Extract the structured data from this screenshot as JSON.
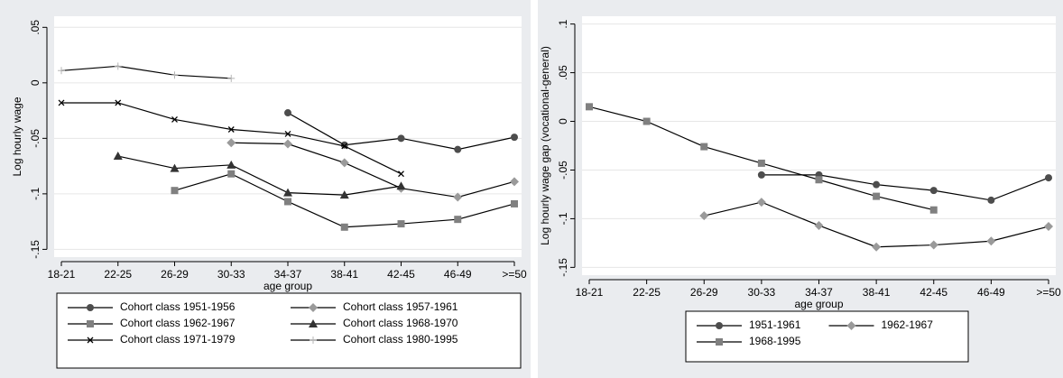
{
  "chart_data": [
    {
      "type": "line",
      "y_label": "Log hourly wage",
      "x_label": "age group",
      "categories": [
        "18-21",
        "22-25",
        "26-29",
        "30-33",
        "34-37",
        "38-41",
        "42-45",
        "46-49",
        ">=50"
      ],
      "ylim": [
        -0.157,
        0.06
      ],
      "yticks": [
        {
          "value": -0.15,
          "label": "-.15"
        },
        {
          "value": -0.1,
          "label": "-.1"
        },
        {
          "value": -0.05,
          "label": "-.05"
        },
        0,
        {
          "value": 0.05,
          "label": ".05"
        }
      ],
      "grid": true,
      "legend": "bottom",
      "series": [
        {
          "name": "Cohort class 1951-1956",
          "color": "#4d4d4d",
          "marker": "circle",
          "values": [
            null,
            null,
            null,
            null,
            -0.027,
            -0.056,
            -0.05,
            -0.06,
            -0.049
          ]
        },
        {
          "name": "Cohort class 1957-1961",
          "color": "#9a9a9a",
          "marker": "diamond",
          "values": [
            null,
            null,
            null,
            -0.054,
            -0.055,
            -0.072,
            -0.095,
            -0.103,
            -0.089
          ]
        },
        {
          "name": "Cohort class 1962-1967",
          "color": "#808080",
          "marker": "square",
          "values": [
            null,
            null,
            -0.097,
            -0.082,
            -0.107,
            -0.13,
            -0.127,
            -0.123,
            -0.109
          ]
        },
        {
          "name": "Cohort class 1968-1970",
          "color": "#333333",
          "marker": "triangle",
          "values": [
            null,
            -0.066,
            -0.077,
            -0.074,
            -0.099,
            -0.101,
            -0.093,
            null,
            null
          ]
        },
        {
          "name": "Cohort class 1971-1979",
          "color": "#000000",
          "marker": "x",
          "values": [
            -0.018,
            -0.018,
            -0.033,
            -0.042,
            -0.046,
            -0.057,
            -0.082,
            null,
            null
          ]
        },
        {
          "name": "Cohort class 1980-1995",
          "color": "#b5b5b5",
          "marker": "plus",
          "values": [
            0.011,
            0.015,
            0.007,
            0.004,
            null,
            null,
            null,
            null,
            null
          ]
        }
      ]
    },
    {
      "type": "line",
      "y_label": "Log hourly wage gap (vocational-general)",
      "x_label": "age group",
      "categories": [
        "18-21",
        "22-25",
        "26-29",
        "30-33",
        "34-37",
        "38-41",
        "42-45",
        "46-49",
        ">=50"
      ],
      "ylim": [
        -0.158,
        0.108
      ],
      "yticks": [
        {
          "value": -0.15,
          "label": "-.15"
        },
        {
          "value": -0.1,
          "label": "-.1"
        },
        {
          "value": -0.05,
          "label": "-.05"
        },
        0,
        {
          "value": 0.05,
          "label": ".05"
        },
        {
          "value": 0.1,
          "label": ".1"
        }
      ],
      "grid": true,
      "legend": "bottom",
      "series": [
        {
          "name": "1951-1961",
          "color": "#4d4d4d",
          "marker": "circle",
          "values": [
            null,
            null,
            null,
            -0.055,
            -0.055,
            -0.065,
            -0.071,
            -0.081,
            -0.058
          ]
        },
        {
          "name": "1962-1967",
          "color": "#9a9a9a",
          "marker": "diamond",
          "values": [
            null,
            null,
            -0.097,
            -0.083,
            -0.107,
            -0.129,
            -0.127,
            -0.123,
            -0.108
          ]
        },
        {
          "name": "1968-1995",
          "color": "#808080",
          "marker": "square",
          "values": [
            0.015,
            0.0,
            -0.026,
            -0.043,
            -0.06,
            -0.077,
            -0.091,
            null,
            null
          ]
        }
      ]
    }
  ]
}
